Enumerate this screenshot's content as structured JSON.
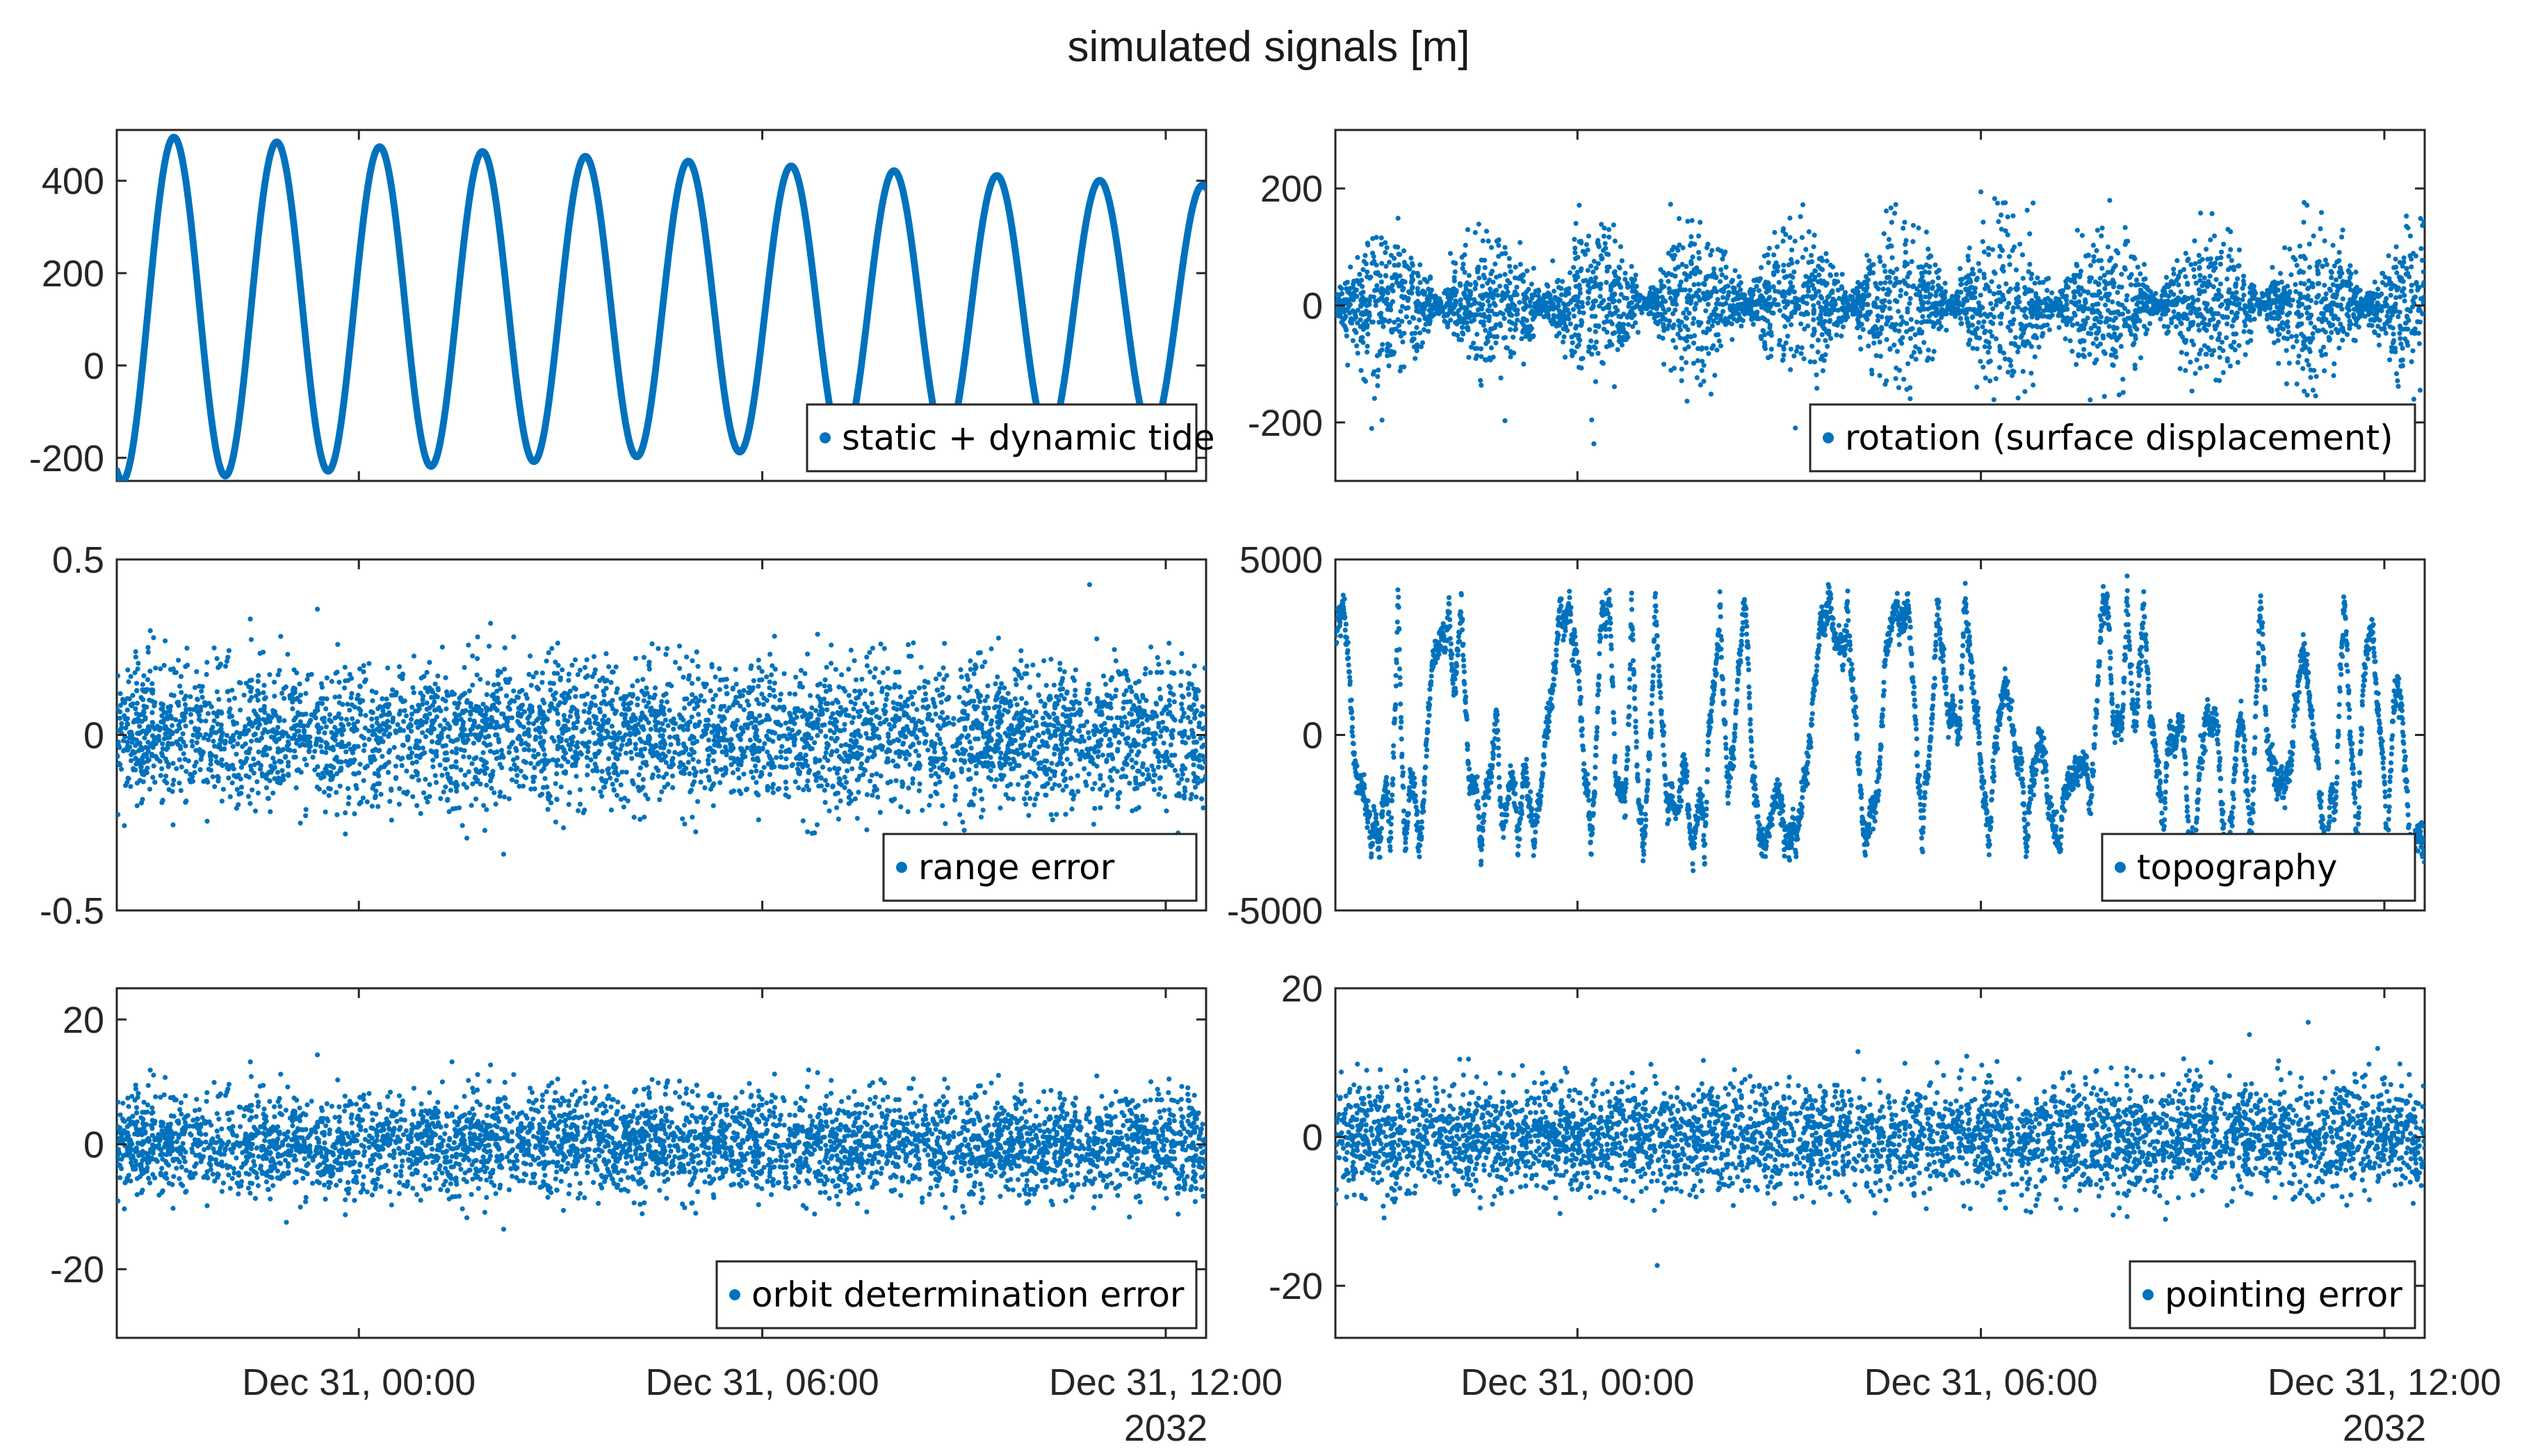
{
  "figure": {
    "title": "simulated signals [m]"
  },
  "colors": {
    "marker": "#0072BD",
    "axis": "#262626"
  },
  "xaxis": {
    "ticks": [
      {
        "label": "Dec 31, 00:00",
        "hour": 0
      },
      {
        "label": "Dec 31, 06:00",
        "hour": 6
      },
      {
        "label": "Dec 31, 12:00",
        "hour": 12
      }
    ],
    "secondary_label": "2032",
    "xlim_hours": [
      -3.6,
      12.6
    ]
  },
  "chart_data": [
    {
      "type": "scatter",
      "name": "static + dynamic tide",
      "legend": "static + dynamic tide",
      "legend_position": "bottom-right",
      "ylim": [
        -250,
        510
      ],
      "yticks": [
        {
          "v": -200,
          "label": "-200"
        },
        {
          "v": 0,
          "label": "0"
        },
        {
          "v": 200,
          "label": "200"
        },
        {
          "v": 400,
          "label": "400"
        }
      ],
      "model": {
        "kind": "sine",
        "offset": 125,
        "amp_start": 375,
        "amp_end": 265,
        "period_hours": 1.53,
        "phase_peak_hour": -2.75,
        "dense": true
      }
    },
    {
      "type": "scatter",
      "name": "rotation (surface displacement)",
      "legend": "rotation (surface displacement)",
      "legend_position": "bottom-right",
      "ylim": [
        -300,
        300
      ],
      "yticks": [
        {
          "v": -200,
          "label": "-200"
        },
        {
          "v": 0,
          "label": "0"
        },
        {
          "v": 200,
          "label": "200"
        }
      ],
      "model": {
        "kind": "modulated_noise",
        "sigma": 70,
        "period_hours": 1.53,
        "phase_min_hour": -3.6,
        "min_scale": 0.08
      }
    },
    {
      "type": "scatter",
      "name": "range error",
      "legend": "range error",
      "legend_position": "bottom-right",
      "ylim": [
        -0.5,
        0.5
      ],
      "yticks": [
        {
          "v": -0.5,
          "label": "-0.5"
        },
        {
          "v": 0,
          "label": "0"
        },
        {
          "v": 0.5,
          "label": "0.5"
        }
      ],
      "model": {
        "kind": "noise",
        "sigma": 0.1,
        "clip": 0.47
      }
    },
    {
      "type": "scatter",
      "name": "topography",
      "legend": "topography",
      "legend_position": "bottom-right",
      "ylim": [
        -5000,
        5000
      ],
      "yticks": [
        {
          "v": -5000,
          "label": "-5000"
        },
        {
          "v": 0,
          "label": "0"
        },
        {
          "v": 5000,
          "label": "5000"
        }
      ],
      "model": {
        "kind": "random_walk",
        "start": 2800,
        "range_min": -3300,
        "range_max": 3900,
        "jitter": 220
      }
    },
    {
      "type": "scatter",
      "name": "orbit determination error",
      "legend": "orbit determination error",
      "legend_position": "bottom-right",
      "ylim": [
        -31,
        25
      ],
      "yticks": [
        {
          "v": -20,
          "label": "-20"
        },
        {
          "v": 0,
          "label": "0"
        },
        {
          "v": 20,
          "label": "20"
        }
      ],
      "model": {
        "kind": "noise",
        "sigma": 4,
        "clip": 24
      }
    },
    {
      "type": "scatter",
      "name": "pointing error",
      "legend": "pointing error",
      "legend_position": "bottom-right",
      "ylim": [
        -27,
        20
      ],
      "yticks": [
        {
          "v": -20,
          "label": "-20"
        },
        {
          "v": 0,
          "label": "0"
        },
        {
          "v": 20,
          "label": "20"
        }
      ],
      "model": {
        "kind": "noise",
        "sigma": 3.6,
        "clip": 19
      }
    }
  ]
}
